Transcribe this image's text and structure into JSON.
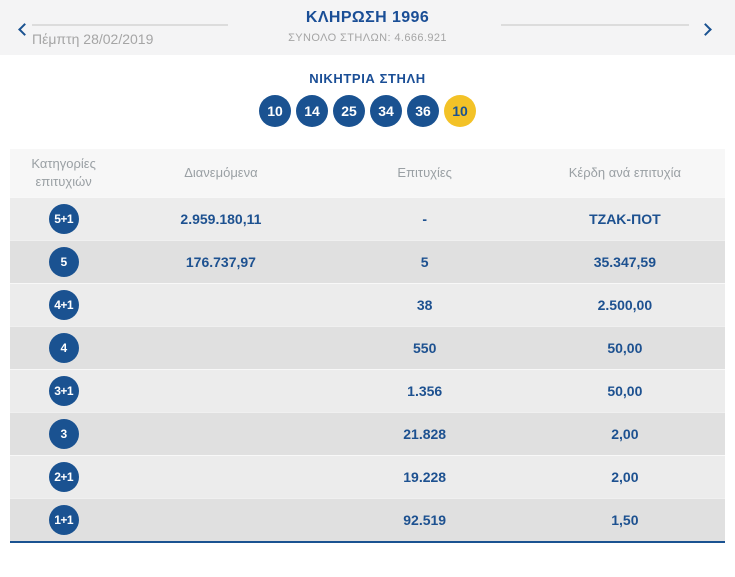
{
  "header": {
    "draw_title": "ΚΛΗΡΩΣΗ 1996",
    "total_columns": "ΣΥΝΟΛΟ ΣΤΗΛΩΝ: 4.666.921",
    "date": "Πέμπτη 28/02/2019"
  },
  "icons": {
    "previous": "chevron-left",
    "next": "chevron-right"
  },
  "colors": {
    "accent_blue": "#1a5291",
    "joker_yellow": "#f3c227",
    "row_light": "#ececec",
    "row_dark": "#e0e0e0"
  },
  "winning": {
    "title": "ΝΙΚΗΤΡΙΑ ΣΤΗΛΗ",
    "numbers": [
      "10",
      "14",
      "25",
      "34",
      "36"
    ],
    "joker": "10"
  },
  "table": {
    "headers": {
      "category": "Κατηγορίες επιτυχιών",
      "distributed": "Διανεμόμενα",
      "winners": "Επιτυχίες",
      "prize": "Κέρδη ανά επιτυχία"
    },
    "rows": [
      {
        "category": "5+1",
        "distributed": "2.959.180,11",
        "winners": "-",
        "prize": "ΤΖΑΚ-ΠΟΤ"
      },
      {
        "category": "5",
        "distributed": "176.737,97",
        "winners": "5",
        "prize": "35.347,59"
      },
      {
        "category": "4+1",
        "distributed": "",
        "winners": "38",
        "prize": "2.500,00"
      },
      {
        "category": "4",
        "distributed": "",
        "winners": "550",
        "prize": "50,00"
      },
      {
        "category": "3+1",
        "distributed": "",
        "winners": "1.356",
        "prize": "50,00"
      },
      {
        "category": "3",
        "distributed": "",
        "winners": "21.828",
        "prize": "2,00"
      },
      {
        "category": "2+1",
        "distributed": "",
        "winners": "19.228",
        "prize": "2,00"
      },
      {
        "category": "1+1",
        "distributed": "",
        "winners": "92.519",
        "prize": "1,50"
      }
    ]
  }
}
